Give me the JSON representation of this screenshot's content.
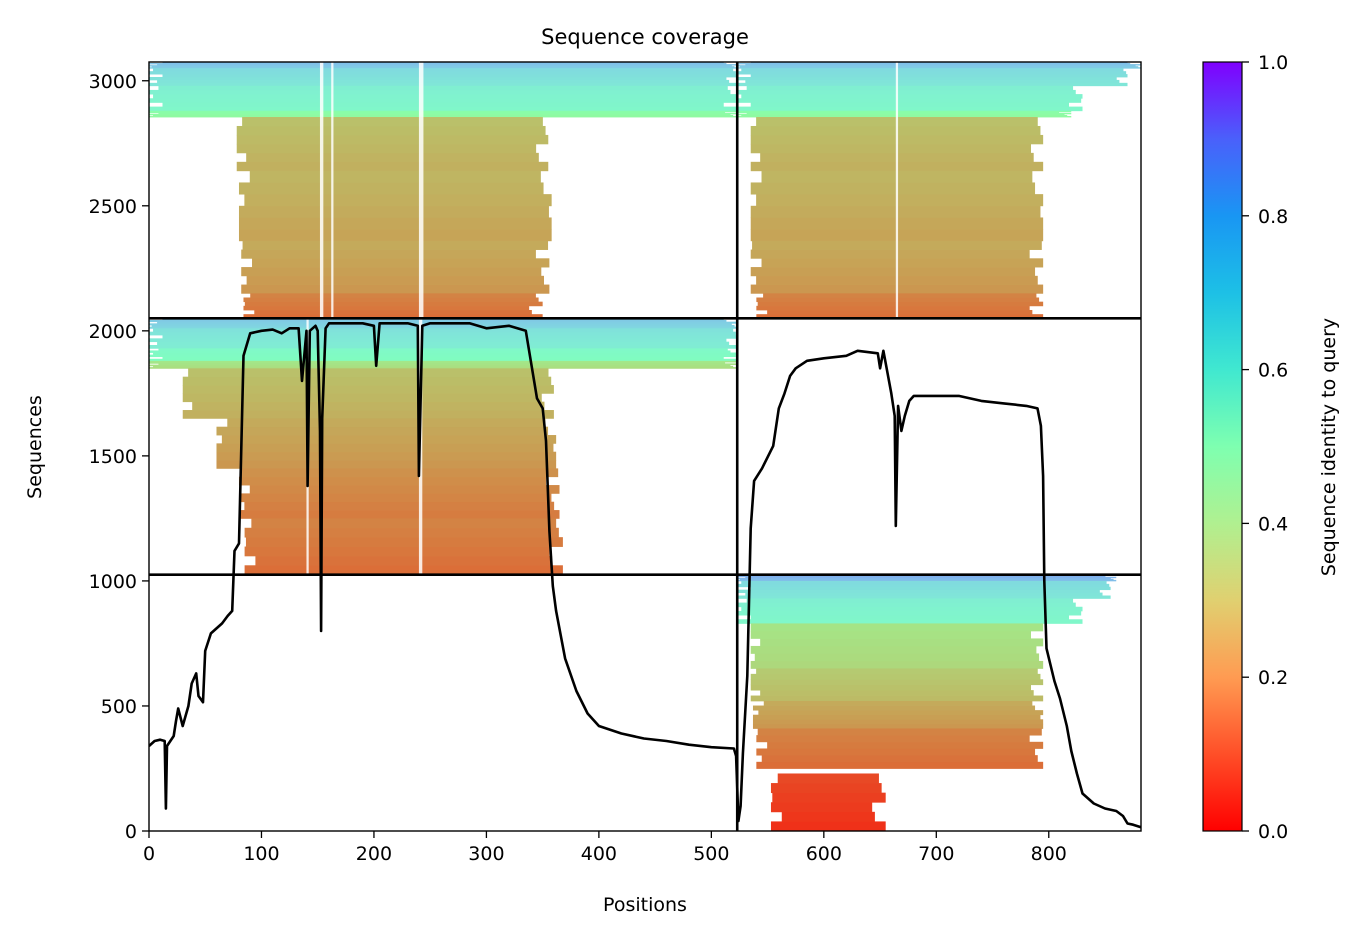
{
  "chart_data": {
    "type": "heatmap",
    "title": "Sequence coverage",
    "xlabel": "Positions",
    "ylabel": "Sequences",
    "xlim": [
      0,
      882
    ],
    "ylim": [
      0,
      3075
    ],
    "xticks": [
      0,
      100,
      200,
      300,
      400,
      500,
      600,
      700,
      800
    ],
    "yticks": [
      0,
      500,
      1000,
      1500,
      2000,
      2500,
      3000
    ],
    "colorbar": {
      "label": "Sequence identity to query",
      "range": [
        0,
        1
      ],
      "ticks": [
        "0.0",
        "0.2",
        "0.4",
        "0.6",
        "0.8",
        "1.0"
      ],
      "colormap": "rainbow_r"
    },
    "chain_boundary_positions": [
      523
    ],
    "block_boundary_sequences": [
      1025,
      2050
    ],
    "coverage_line": {
      "color": "#000000",
      "points": [
        [
          0,
          340
        ],
        [
          5,
          360
        ],
        [
          10,
          365
        ],
        [
          14,
          360
        ],
        [
          15,
          90
        ],
        [
          16,
          340
        ],
        [
          22,
          380
        ],
        [
          24,
          440
        ],
        [
          26,
          490
        ],
        [
          30,
          420
        ],
        [
          35,
          500
        ],
        [
          38,
          590
        ],
        [
          42,
          630
        ],
        [
          44,
          540
        ],
        [
          48,
          515
        ],
        [
          50,
          720
        ],
        [
          55,
          790
        ],
        [
          60,
          810
        ],
        [
          65,
          830
        ],
        [
          70,
          860
        ],
        [
          74,
          880
        ],
        [
          76,
          1120
        ],
        [
          80,
          1150
        ],
        [
          84,
          1900
        ],
        [
          90,
          1990
        ],
        [
          100,
          2000
        ],
        [
          110,
          2005
        ],
        [
          118,
          1990
        ],
        [
          125,
          2010
        ],
        [
          133,
          2010
        ],
        [
          136,
          1800
        ],
        [
          140,
          2000
        ],
        [
          141,
          1380
        ],
        [
          143,
          2000
        ],
        [
          148,
          2020
        ],
        [
          150,
          2000
        ],
        [
          152,
          1600
        ],
        [
          153,
          800
        ],
        [
          154,
          1650
        ],
        [
          157,
          2010
        ],
        [
          160,
          2030
        ],
        [
          175,
          2030
        ],
        [
          190,
          2030
        ],
        [
          200,
          2020
        ],
        [
          202,
          1860
        ],
        [
          205,
          2030
        ],
        [
          220,
          2030
        ],
        [
          230,
          2030
        ],
        [
          239,
          2020
        ],
        [
          240,
          1420
        ],
        [
          243,
          2020
        ],
        [
          250,
          2030
        ],
        [
          270,
          2030
        ],
        [
          285,
          2030
        ],
        [
          300,
          2010
        ],
        [
          320,
          2020
        ],
        [
          335,
          2000
        ],
        [
          345,
          1730
        ],
        [
          350,
          1690
        ],
        [
          353,
          1560
        ],
        [
          356,
          1200
        ],
        [
          359,
          980
        ],
        [
          362,
          880
        ],
        [
          370,
          690
        ],
        [
          380,
          560
        ],
        [
          390,
          470
        ],
        [
          400,
          420
        ],
        [
          420,
          390
        ],
        [
          440,
          370
        ],
        [
          460,
          360
        ],
        [
          480,
          345
        ],
        [
          500,
          335
        ],
        [
          520,
          330
        ],
        [
          522,
          300
        ],
        [
          524,
          40
        ],
        [
          526,
          100
        ],
        [
          528,
          310
        ],
        [
          532,
          620
        ],
        [
          535,
          1210
        ],
        [
          538,
          1400
        ],
        [
          545,
          1450
        ],
        [
          555,
          1540
        ],
        [
          560,
          1690
        ],
        [
          565,
          1750
        ],
        [
          570,
          1820
        ],
        [
          575,
          1850
        ],
        [
          585,
          1880
        ],
        [
          600,
          1890
        ],
        [
          620,
          1900
        ],
        [
          630,
          1920
        ],
        [
          648,
          1910
        ],
        [
          650,
          1850
        ],
        [
          653,
          1920
        ],
        [
          660,
          1750
        ],
        [
          663,
          1660
        ],
        [
          664,
          1220
        ],
        [
          666,
          1700
        ],
        [
          669,
          1600
        ],
        [
          672,
          1660
        ],
        [
          676,
          1720
        ],
        [
          680,
          1740
        ],
        [
          700,
          1740
        ],
        [
          720,
          1740
        ],
        [
          740,
          1720
        ],
        [
          760,
          1710
        ],
        [
          780,
          1700
        ],
        [
          790,
          1690
        ],
        [
          793,
          1620
        ],
        [
          795,
          1420
        ],
        [
          796,
          1000
        ],
        [
          798,
          730
        ],
        [
          805,
          600
        ],
        [
          810,
          530
        ],
        [
          816,
          420
        ],
        [
          820,
          320
        ],
        [
          825,
          230
        ],
        [
          830,
          150
        ],
        [
          840,
          110
        ],
        [
          850,
          90
        ],
        [
          860,
          80
        ],
        [
          866,
          60
        ],
        [
          870,
          30
        ],
        [
          875,
          25
        ],
        [
          882,
          15
        ]
      ]
    },
    "alignment_blocks": [
      {
        "name": "chain-1-block-top",
        "x_range": [
          0,
          523
        ],
        "y_range": [
          2050,
          3075
        ],
        "bands": [
          {
            "y": [
              3050,
              3075
            ],
            "x": [
              0,
              523
            ],
            "identity": 0.72
          },
          {
            "y": [
              2980,
              3050
            ],
            "x": [
              0,
              523
            ],
            "identity": 0.66
          },
          {
            "y": [
              2880,
              2980
            ],
            "x": [
              0,
              523
            ],
            "identity": 0.6
          },
          {
            "y": [
              2855,
              2880
            ],
            "x": [
              0,
              523
            ],
            "identity": 0.45
          },
          {
            "y": [
              2640,
              2855
            ],
            "x": [
              78,
              355
            ],
            "identity": 0.26
          },
          {
            "y": [
              2360,
              2640
            ],
            "x": [
              80,
              358
            ],
            "identity": 0.24
          },
          {
            "y": [
              2150,
              2360
            ],
            "x": [
              82,
              356
            ],
            "identity": 0.22
          },
          {
            "y": [
              2050,
              2150
            ],
            "x": [
              84,
              350
            ],
            "identity": 0.16
          }
        ],
        "gaps": [
          [
            152,
            155
          ],
          [
            162,
            164
          ],
          [
            240,
            244
          ]
        ]
      },
      {
        "name": "chain-2-block-top",
        "x_range": [
          523,
          882
        ],
        "y_range": [
          2050,
          3075
        ],
        "bands": [
          {
            "y": [
              3050,
              3075
            ],
            "x": [
              523,
              882
            ],
            "identity": 0.72
          },
          {
            "y": [
              2980,
              3050
            ],
            "x": [
              523,
              870
            ],
            "identity": 0.66
          },
          {
            "y": [
              2880,
              2980
            ],
            "x": [
              523,
              830
            ],
            "identity": 0.6
          },
          {
            "y": [
              2855,
              2880
            ],
            "x": [
              523,
              820
            ],
            "identity": 0.45
          },
          {
            "y": [
              2640,
              2855
            ],
            "x": [
              535,
              795
            ],
            "identity": 0.26
          },
          {
            "y": [
              2360,
              2640
            ],
            "x": [
              535,
              795
            ],
            "identity": 0.24
          },
          {
            "y": [
              2150,
              2360
            ],
            "x": [
              535,
              795
            ],
            "identity": 0.22
          },
          {
            "y": [
              2050,
              2150
            ],
            "x": [
              540,
              795
            ],
            "identity": 0.16
          }
        ],
        "gaps": [
          [
            664,
            666
          ]
        ]
      },
      {
        "name": "chain-1-block-middle",
        "x_range": [
          0,
          523
        ],
        "y_range": [
          1025,
          2050
        ],
        "bands": [
          {
            "y": [
              2010,
              2050
            ],
            "x": [
              0,
              523
            ],
            "identity": 0.7
          },
          {
            "y": [
              1930,
              2010
            ],
            "x": [
              0,
              523
            ],
            "identity": 0.64
          },
          {
            "y": [
              1880,
              1930
            ],
            "x": [
              0,
              523
            ],
            "identity": 0.56
          },
          {
            "y": [
              1850,
              1880
            ],
            "x": [
              0,
              523
            ],
            "identity": 0.35
          },
          {
            "y": [
              1650,
              1850
            ],
            "x": [
              30,
              360
            ],
            "identity": 0.26
          },
          {
            "y": [
              1450,
              1650
            ],
            "x": [
              60,
              362
            ],
            "identity": 0.22
          },
          {
            "y": [
              1250,
              1450
            ],
            "x": [
              80,
              365
            ],
            "identity": 0.18
          },
          {
            "y": [
              1025,
              1250
            ],
            "x": [
              85,
              368
            ],
            "identity": 0.16
          }
        ],
        "gaps": [
          [
            140,
            142
          ],
          [
            240,
            243
          ]
        ]
      },
      {
        "name": "chain-2-block-bottom",
        "x_range": [
          523,
          882
        ],
        "y_range": [
          0,
          1025
        ],
        "bands": [
          {
            "y": [
              1000,
              1025
            ],
            "x": [
              523,
              860
            ],
            "identity": 0.75
          },
          {
            "y": [
              930,
              1000
            ],
            "x": [
              523,
              855
            ],
            "identity": 0.66
          },
          {
            "y": [
              830,
              930
            ],
            "x": [
              523,
              830
            ],
            "identity": 0.6
          },
          {
            "y": [
              650,
              830
            ],
            "x": [
              535,
              795
            ],
            "identity": 0.34
          },
          {
            "y": [
              520,
              650
            ],
            "x": [
              535,
              795
            ],
            "identity": 0.28
          },
          {
            "y": [
              410,
              520
            ],
            "x": [
              537,
              795
            ],
            "identity": 0.22
          },
          {
            "y": [
              250,
              410
            ],
            "x": [
              540,
              795
            ],
            "identity": 0.16
          },
          {
            "y": [
              0,
              230
            ],
            "x": [
              553,
              655
            ],
            "identity": 0.08
          }
        ],
        "gaps": []
      }
    ]
  }
}
